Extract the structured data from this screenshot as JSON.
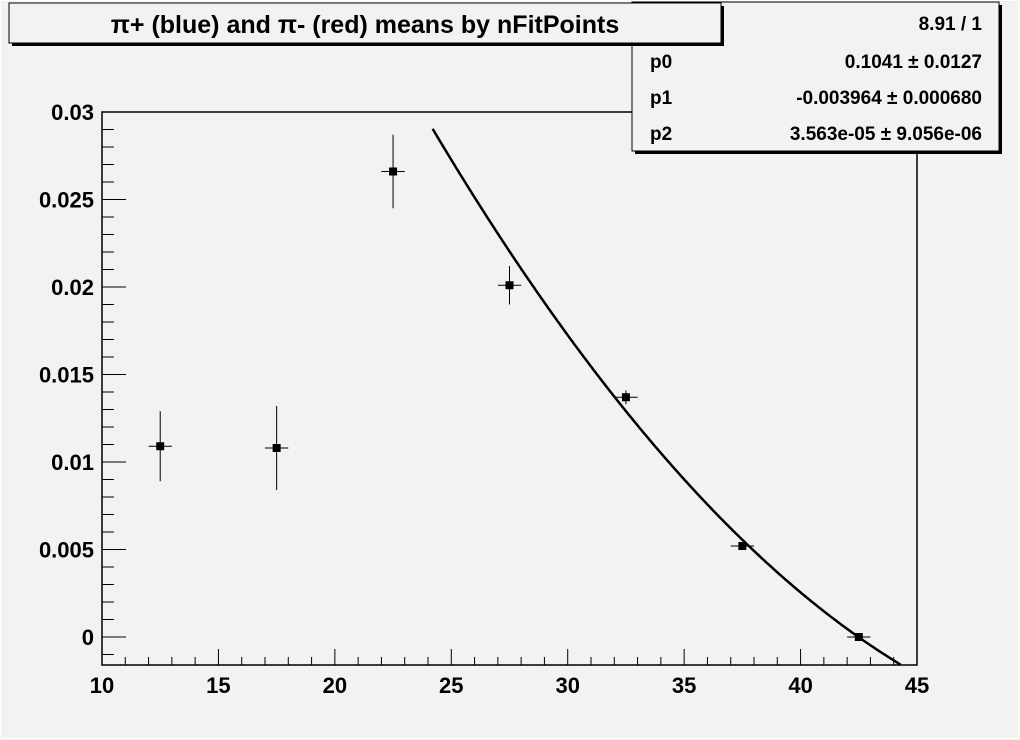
{
  "chart_data": {
    "type": "scatter",
    "title": "π+ (blue) and π- (red) means by nFitPoints",
    "xlabel": "",
    "ylabel": "",
    "xlim": [
      10,
      45
    ],
    "ylim": [
      -0.0016,
      0.03
    ],
    "x_ticks": [
      "10",
      "15",
      "20",
      "25",
      "30",
      "35",
      "40",
      "45"
    ],
    "y_ticks": [
      "0",
      "0.005",
      "0.01",
      "0.015",
      "0.02",
      "0.025",
      "0.03"
    ],
    "grid": false,
    "points": [
      {
        "x": 12.5,
        "y": 0.0109,
        "xerr": 0.5,
        "yerr": 0.002
      },
      {
        "x": 17.5,
        "y": 0.0108,
        "xerr": 0.5,
        "yerr": 0.0024
      },
      {
        "x": 22.5,
        "y": 0.0266,
        "xerr": 0.5,
        "yerr": 0.0021
      },
      {
        "x": 27.5,
        "y": 0.0201,
        "xerr": 0.5,
        "yerr": 0.0011
      },
      {
        "x": 32.5,
        "y": 0.0137,
        "xerr": 0.5,
        "yerr": 0.0004
      },
      {
        "x": 37.5,
        "y": 0.0052,
        "xerr": 0.5,
        "yerr": 0.0002
      },
      {
        "x": 42.5,
        "y": 0.0,
        "xerr": 0.5,
        "yerr": 0.0001
      }
    ],
    "fit": {
      "function": "pol2",
      "range": [
        24.2,
        44.5
      ],
      "p0": 0.1041,
      "p1": -0.003964,
      "p2": 3.563e-05
    },
    "stats": {
      "chi2_ndf": "8.91 / 1",
      "rows": [
        {
          "name": "p0",
          "value": "0.1041 ± 0.0127"
        },
        {
          "name": "p1",
          "value": "-0.003964 ± 0.000680"
        },
        {
          "name": "p2",
          "value": "3.563e-05 ± 9.056e-06"
        }
      ]
    },
    "colors": {
      "background": "#f2f2f2",
      "marker": "#000000",
      "fit": "#000000"
    }
  }
}
